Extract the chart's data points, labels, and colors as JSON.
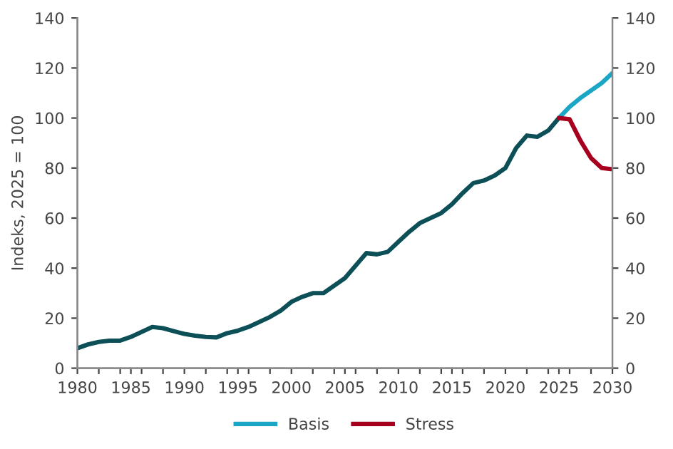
{
  "chart_data": {
    "type": "line",
    "ylabel": "Indeks, 2025 = 100",
    "xlim": [
      1980,
      2030
    ],
    "ylim": [
      0,
      140
    ],
    "y2lim": [
      0,
      140
    ],
    "xticks": [
      1980,
      {
        "value": 1982,
        "label": null
      },
      {
        "value": 1984,
        "label": null
      },
      1985,
      {
        "value": 1986,
        "label": null
      },
      {
        "value": 1988,
        "label": null
      },
      1990,
      {
        "value": 1992,
        "label": null
      },
      {
        "value": 1994,
        "label": null
      },
      1995,
      {
        "value": 1996,
        "label": null
      },
      {
        "value": 1998,
        "label": null
      },
      2000,
      {
        "value": 2002,
        "label": null
      },
      {
        "value": 2004,
        "label": null
      },
      2005,
      {
        "value": 2006,
        "label": null
      },
      {
        "value": 2008,
        "label": null
      },
      2010,
      {
        "value": 2012,
        "label": null
      },
      {
        "value": 2014,
        "label": null
      },
      2015,
      {
        "value": 2016,
        "label": null
      },
      {
        "value": 2018,
        "label": null
      },
      2020,
      {
        "value": 2022,
        "label": null
      },
      {
        "value": 2024,
        "label": null
      },
      2025,
      {
        "value": 2026,
        "label": null
      },
      {
        "value": 2028,
        "label": null
      },
      2030
    ],
    "yticks": [
      0,
      20,
      40,
      60,
      80,
      100,
      120,
      140
    ],
    "y2ticks": [
      0,
      20,
      40,
      60,
      80,
      100,
      120,
      140
    ],
    "grid": false,
    "legend": "bottom",
    "marker": "none",
    "line_style": "solid",
    "series": [
      {
        "color": "#0d4f57",
        "x": [
          1980,
          1981,
          1982,
          1983,
          1984,
          1985,
          1986,
          1987,
          1988,
          1989,
          1990,
          1991,
          1992,
          1993,
          1994,
          1995,
          1996,
          1997,
          1998,
          1999,
          2000,
          2001,
          2002,
          2003,
          2004,
          2005,
          2006,
          2007,
          2008,
          2009,
          2010,
          2011,
          2012,
          2013,
          2014,
          2015,
          2016,
          2017,
          2018,
          2019,
          2020,
          2021,
          2022,
          2023,
          2024,
          2025
        ],
        "values": [
          8,
          9.5,
          10.5,
          11,
          11,
          12.5,
          14.5,
          16.5,
          16,
          14.8,
          13.7,
          13,
          12.5,
          12.3,
          14,
          15,
          16.5,
          18.5,
          20.5,
          23,
          26.5,
          28.5,
          30,
          30,
          33,
          36,
          41,
          46,
          45.5,
          46.5,
          50.5,
          54.5,
          58,
          60,
          62,
          65.5,
          70,
          74,
          75,
          77,
          80,
          88,
          93,
          92.5,
          95,
          100
        ]
      },
      {
        "name": "Basis",
        "color": "#1aa6c4",
        "x": [
          2025,
          2026,
          2027,
          2028,
          2029,
          2030
        ],
        "values": [
          100,
          104.5,
          108,
          111,
          114,
          118
        ]
      },
      {
        "name": "Stress",
        "color": "#a6001e",
        "x": [
          2025,
          2026,
          2027,
          2028,
          2029,
          2030
        ],
        "values": [
          100,
          99.5,
          91,
          84,
          80,
          79.5
        ]
      }
    ]
  }
}
